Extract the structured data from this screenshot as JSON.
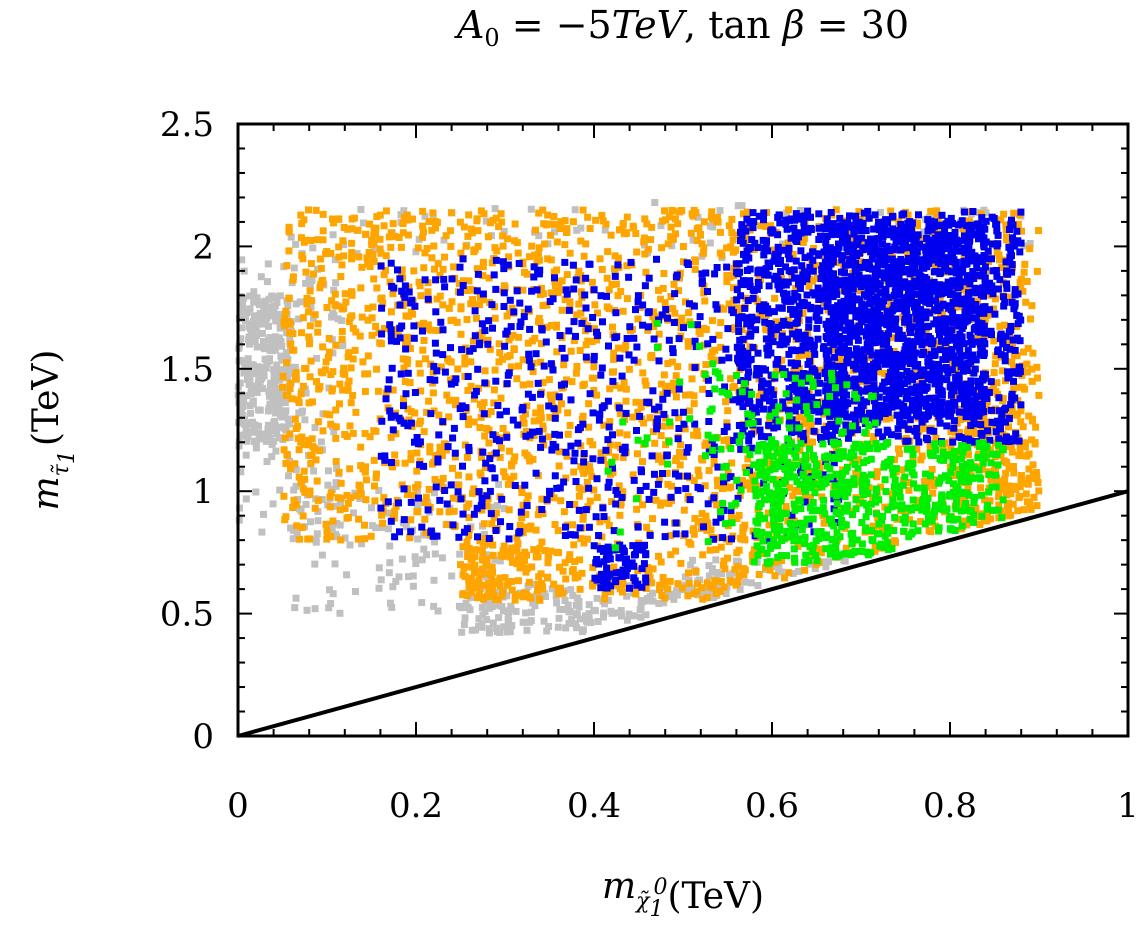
{
  "chart_data": {
    "type": "scatter",
    "title": "A0 = −5TeV, tan β = 30",
    "title_parts": {
      "a": "A",
      "a_sub": "0",
      "eq1": " = −5",
      "tev": "TeV",
      "sep": ", ",
      "tan": "tan ",
      "beta": "β",
      "eq2": " = 30"
    },
    "xlabel": "m χ̃ 1 0 (TeV)",
    "xlabel_parts": {
      "m": "m",
      "sub": "χ̃",
      "subsub": "1",
      "sup": "0",
      "unit": "(TeV)"
    },
    "ylabel": "m τ̃ 1 (TeV)",
    "ylabel_parts": {
      "m": "m",
      "sub": "τ̃",
      "subsub": "1",
      "unit": "(TeV)"
    },
    "xlim": [
      0,
      1
    ],
    "ylim": [
      0,
      2.5
    ],
    "x_ticks": [
      0,
      0.2,
      0.4,
      0.6,
      0.8,
      1
    ],
    "x_tick_labels": [
      "0",
      "0.2",
      "0.4",
      "0.6",
      "0.8",
      "1"
    ],
    "y_ticks": [
      0,
      0.5,
      1,
      1.5,
      2,
      2.5
    ],
    "y_tick_labels": [
      "0",
      "0.5",
      "1",
      "1.5",
      "2",
      "2.5"
    ],
    "grid": false,
    "legend": "none",
    "series": [
      {
        "color": "#c0c0c0",
        "regions": [
          {
            "x": [
              0.0,
              0.06
            ],
            "y": [
              1.2,
              1.8
            ],
            "n": 260
          },
          {
            "x": [
              0.0,
              0.12
            ],
            "y": [
              0.8,
              2.05
            ],
            "n": 140
          },
          {
            "x": [
              0.06,
              0.3
            ],
            "y": [
              0.5,
              1.05
            ],
            "n": 120
          },
          {
            "x": [
              0.25,
              0.55
            ],
            "y": [
              0.42,
              0.62
            ],
            "n": 260
          },
          {
            "x": [
              0.5,
              0.72
            ],
            "y": [
              0.55,
              0.72
            ],
            "n": 120
          },
          {
            "x": [
              0.12,
              0.9
            ],
            "y": [
              1.95,
              2.18
            ],
            "n": 70
          }
        ]
      },
      {
        "color": "#ffa500",
        "regions": [
          {
            "x": [
              0.05,
              0.9
            ],
            "y": [
              0.8,
              2.15
            ],
            "n": 2200
          },
          {
            "x": [
              0.25,
              0.35
            ],
            "y": [
              0.55,
              0.8
            ],
            "n": 140
          },
          {
            "x": [
              0.35,
              0.82
            ],
            "y": [
              0.55,
              0.8
            ],
            "n": 260
          },
          {
            "x": [
              0.8,
              0.9
            ],
            "y": [
              0.8,
              1.4
            ],
            "n": 160
          }
        ]
      },
      {
        "color": "#0000ee",
        "regions": [
          {
            "x": [
              0.16,
              0.68
            ],
            "y": [
              0.8,
              1.95
            ],
            "n": 650
          },
          {
            "x": [
              0.4,
              0.46
            ],
            "y": [
              0.6,
              0.78
            ],
            "n": 70
          },
          {
            "x": [
              0.56,
              0.88
            ],
            "y": [
              1.2,
              2.15
            ],
            "n": 1200
          },
          {
            "x": [
              0.66,
              0.84
            ],
            "y": [
              1.3,
              2.1
            ],
            "n": 900
          }
        ]
      },
      {
        "color": "#00ee00",
        "regions": [
          {
            "x": [
              0.58,
              0.86
            ],
            "y": [
              0.7,
              1.2
            ],
            "n": 620
          },
          {
            "x": [
              0.52,
              0.72
            ],
            "y": [
              0.9,
              1.5
            ],
            "n": 120
          },
          {
            "x": [
              0.4,
              0.56
            ],
            "y": [
              0.75,
              1.75
            ],
            "n": 25
          }
        ]
      }
    ],
    "boundary_line": {
      "x": [
        0,
        1
      ],
      "y": [
        0,
        1
      ],
      "color": "#000000"
    }
  }
}
